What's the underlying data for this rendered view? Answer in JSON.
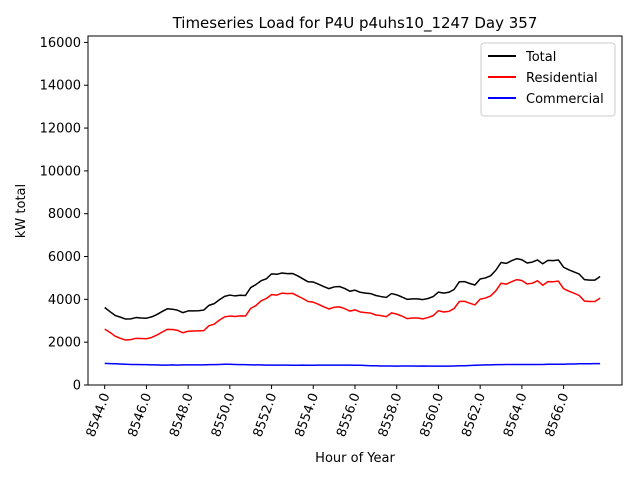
{
  "chart_data": {
    "type": "line",
    "title": "Timeseries Load for P4U p4uhs10_1247  Day 357",
    "xlabel": "Hour of Year",
    "ylabel": "kW total",
    "xlim": [
      8543.2,
      8568.8
    ],
    "ylim": [
      0,
      16300
    ],
    "x_ticks": [
      8544,
      8546,
      8548,
      8550,
      8552,
      8554,
      8556,
      8558,
      8560,
      8562,
      8564,
      8566
    ],
    "x_tick_labels": [
      "8544.0",
      "8546.0",
      "8548.0",
      "8550.0",
      "8552.0",
      "8554.0",
      "8556.0",
      "8558.0",
      "8560.0",
      "8562.0",
      "8564.0",
      "8566.0"
    ],
    "y_ticks": [
      0,
      2000,
      4000,
      6000,
      8000,
      10000,
      12000,
      14000,
      16000
    ],
    "y_tick_labels": [
      "0",
      "2000",
      "4000",
      "6000",
      "8000",
      "10000",
      "12000",
      "14000",
      "16000"
    ],
    "grid": false,
    "legend_position": "top-right",
    "x": [
      8544,
      8544.25,
      8544.5,
      8544.75,
      8545,
      8545.25,
      8545.5,
      8545.75,
      8546,
      8546.25,
      8546.5,
      8546.75,
      8547,
      8547.25,
      8547.5,
      8547.75,
      8548,
      8548.25,
      8548.5,
      8548.75,
      8549,
      8549.25,
      8549.5,
      8549.75,
      8550,
      8550.25,
      8550.5,
      8550.75,
      8551,
      8551.25,
      8551.5,
      8551.75,
      8552,
      8552.25,
      8552.5,
      8552.75,
      8553,
      8553.25,
      8553.5,
      8553.75,
      8554,
      8554.25,
      8554.5,
      8554.75,
      8555,
      8555.25,
      8555.5,
      8555.75,
      8556,
      8556.25,
      8556.5,
      8556.75,
      8557,
      8557.25,
      8557.5,
      8557.75,
      8558,
      8558.25,
      8558.5,
      8558.75,
      8559,
      8559.25,
      8559.5,
      8559.75,
      8560,
      8560.25,
      8560.5,
      8560.75,
      8561,
      8561.25,
      8561.5,
      8561.75,
      8562,
      8562.25,
      8562.5,
      8562.75,
      8563,
      8563.25,
      8563.5,
      8563.75,
      8564,
      8564.25,
      8564.5,
      8564.75,
      8565,
      8565.25,
      8565.5,
      8565.75,
      8566,
      8566.25,
      8566.5,
      8566.75,
      8567,
      8567.25,
      8567.5,
      8567.75
    ],
    "series": [
      {
        "name": "Total",
        "color": "#000000",
        "values": [
          3620,
          3430,
          3250,
          3170,
          3080,
          3090,
          3150,
          3130,
          3120,
          3180,
          3290,
          3430,
          3560,
          3540,
          3490,
          3380,
          3460,
          3460,
          3470,
          3500,
          3720,
          3800,
          3980,
          4140,
          4200,
          4160,
          4190,
          4180,
          4550,
          4690,
          4870,
          4960,
          5190,
          5170,
          5230,
          5200,
          5210,
          5100,
          4960,
          4820,
          4810,
          4710,
          4600,
          4500,
          4580,
          4600,
          4510,
          4380,
          4430,
          4330,
          4290,
          4270,
          4180,
          4130,
          4090,
          4270,
          4210,
          4110,
          4000,
          4020,
          4020,
          3990,
          4040,
          4130,
          4340,
          4290,
          4330,
          4460,
          4820,
          4830,
          4740,
          4670,
          4950,
          5000,
          5100,
          5360,
          5720,
          5680,
          5800,
          5900,
          5850,
          5700,
          5740,
          5840,
          5660,
          5820,
          5810,
          5840,
          5500,
          5380,
          5280,
          5180,
          4920,
          4900,
          4900,
          5070
        ]
      },
      {
        "name": "Residential",
        "color": "#ff0000",
        "values": [
          2610,
          2460,
          2280,
          2180,
          2100,
          2120,
          2180,
          2170,
          2160,
          2220,
          2330,
          2470,
          2600,
          2590,
          2550,
          2440,
          2510,
          2520,
          2530,
          2540,
          2770,
          2840,
          3030,
          3180,
          3220,
          3200,
          3230,
          3220,
          3580,
          3710,
          3930,
          4040,
          4220,
          4200,
          4290,
          4270,
          4280,
          4160,
          4040,
          3900,
          3870,
          3770,
          3650,
          3550,
          3630,
          3650,
          3570,
          3450,
          3510,
          3410,
          3380,
          3360,
          3270,
          3240,
          3190,
          3370,
          3310,
          3220,
          3100,
          3130,
          3130,
          3090,
          3150,
          3240,
          3470,
          3410,
          3440,
          3570,
          3900,
          3910,
          3820,
          3740,
          4010,
          4060,
          4160,
          4400,
          4750,
          4710,
          4820,
          4920,
          4880,
          4720,
          4750,
          4870,
          4660,
          4830,
          4820,
          4850,
          4500,
          4380,
          4290,
          4180,
          3920,
          3900,
          3900,
          4060
        ]
      },
      {
        "name": "Commercial",
        "color": "#0000ff",
        "values": [
          1010,
          1000,
          990,
          980,
          970,
          960,
          960,
          950,
          950,
          940,
          940,
          930,
          930,
          940,
          930,
          940,
          940,
          940,
          940,
          940,
          950,
          950,
          960,
          970,
          970,
          960,
          950,
          950,
          940,
          940,
          940,
          930,
          930,
          930,
          930,
          930,
          920,
          920,
          930,
          920,
          920,
          930,
          930,
          930,
          930,
          930,
          930,
          930,
          920,
          920,
          910,
          900,
          900,
          890,
          890,
          890,
          880,
          890,
          890,
          890,
          880,
          890,
          880,
          880,
          880,
          880,
          880,
          890,
          900,
          900,
          910,
          920,
          930,
          940,
          940,
          950,
          950,
          960,
          960,
          960,
          960,
          960,
          960,
          960,
          960,
          970,
          970,
          970,
          970,
          980,
          980,
          990,
          990,
          990,
          1000,
          1000
        ]
      }
    ]
  }
}
